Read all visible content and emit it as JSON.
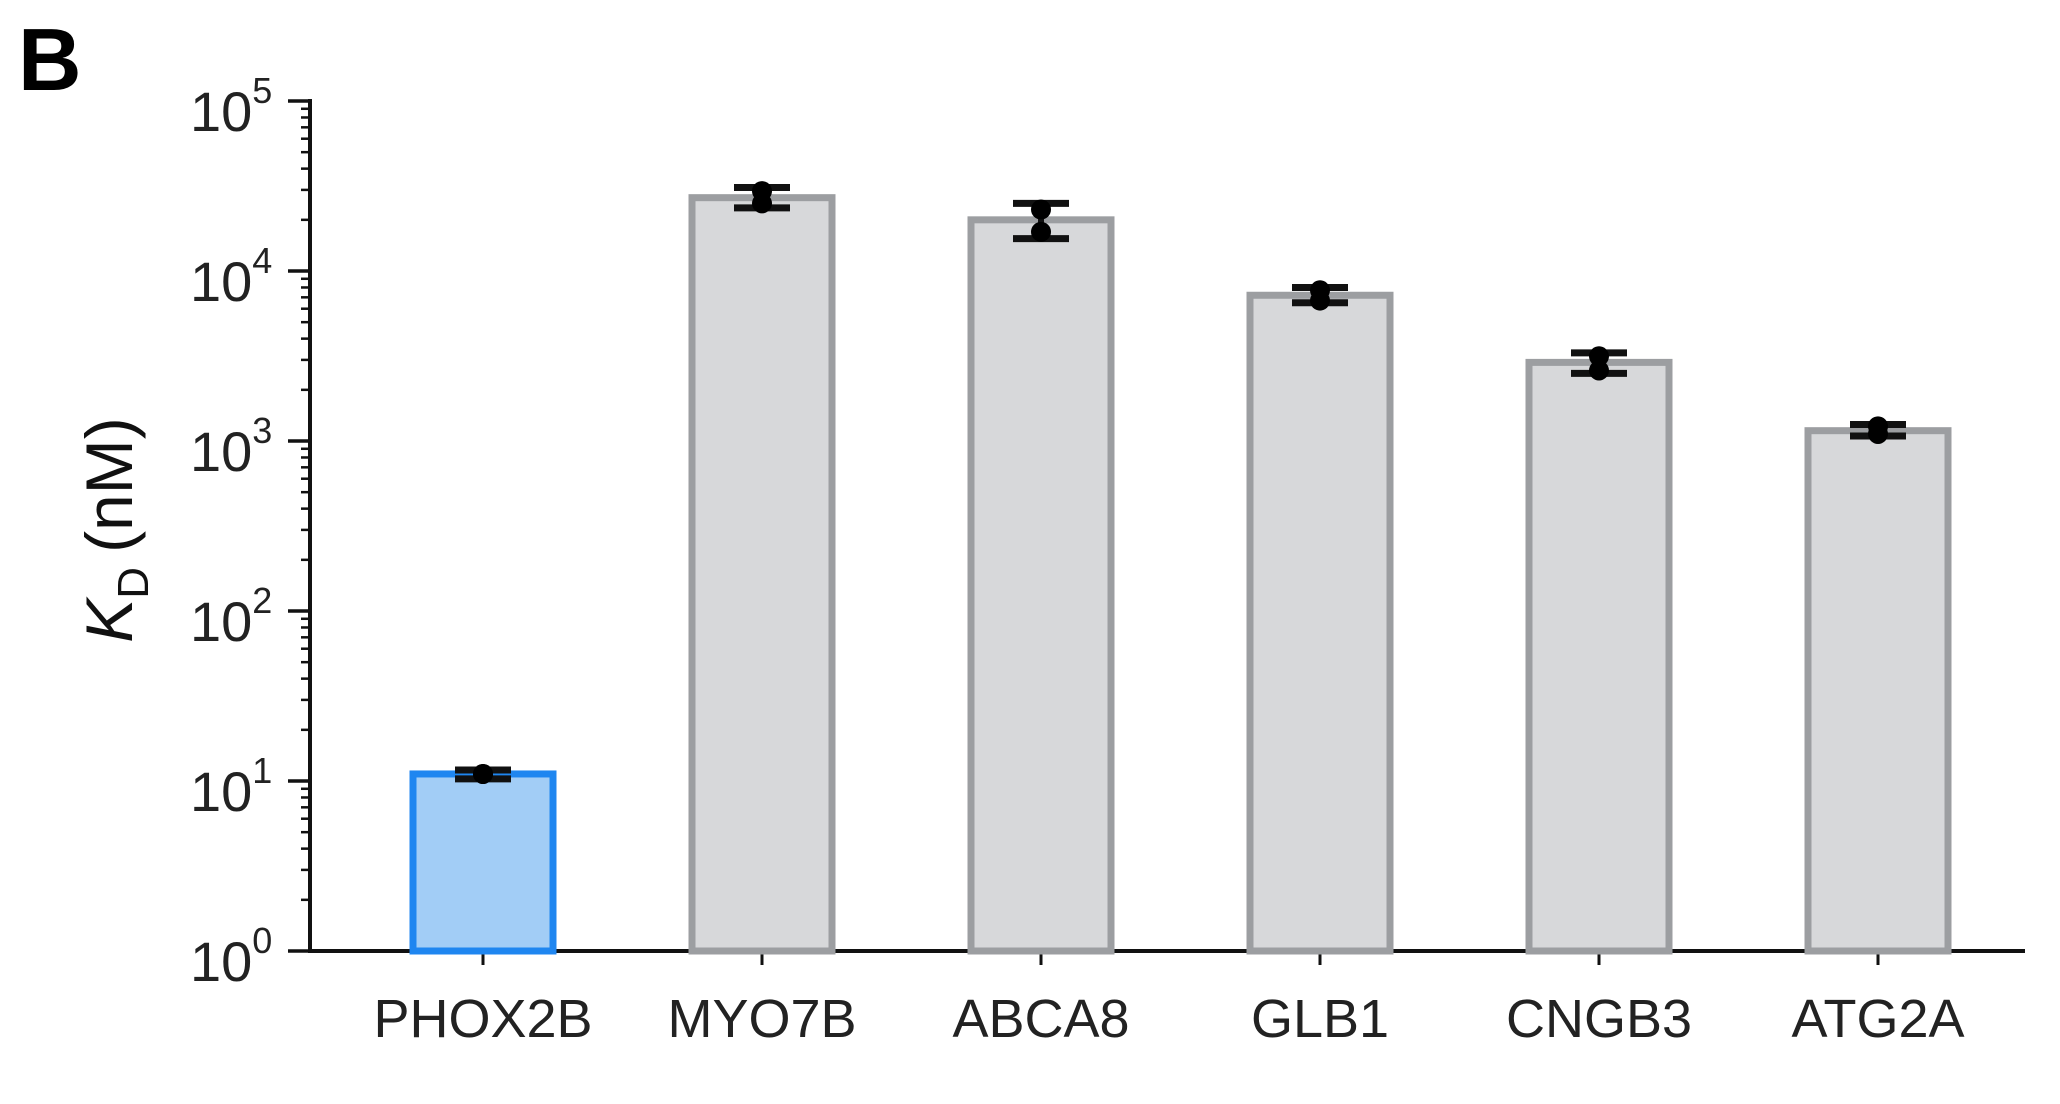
{
  "panel_label": "B",
  "chart_data": {
    "type": "bar",
    "scale": "log",
    "ylabel": {
      "symbol": "K",
      "subscript": "D",
      "unit": "(nM)"
    },
    "ylim": [
      1,
      100000
    ],
    "yticks": [
      {
        "base": "10",
        "exp": "0",
        "value": 1
      },
      {
        "base": "10",
        "exp": "1",
        "value": 10
      },
      {
        "base": "10",
        "exp": "2",
        "value": 100
      },
      {
        "base": "10",
        "exp": "3",
        "value": 1000
      },
      {
        "base": "10",
        "exp": "4",
        "value": 10000
      },
      {
        "base": "10",
        "exp": "5",
        "value": 100000
      }
    ],
    "categories": [
      "PHOX2B",
      "MYO7B",
      "ABCA8",
      "GLB1",
      "CNGB3",
      "ATG2A"
    ],
    "values": [
      11,
      27000,
      20000,
      7200,
      2900,
      1150
    ],
    "error_low": [
      10.3,
      23500,
      15500,
      6500,
      2500,
      1070
    ],
    "error_high": [
      11.6,
      31000,
      25000,
      8000,
      3300,
      1250
    ],
    "points": [
      [
        11,
        11
      ],
      [
        25000,
        29500
      ],
      [
        17000,
        23000
      ],
      [
        6700,
        7700
      ],
      [
        2600,
        3150
      ],
      [
        1100,
        1220
      ]
    ],
    "highlight": "PHOX2B",
    "colors": {
      "highlight_fill": "#a2cdf6",
      "highlight_edge": "#1f86f0",
      "bar_fill": "#d7d8da",
      "bar_edge": "#9c9ea1",
      "axis": "#111111",
      "errorbar": "#111111"
    },
    "grid": false,
    "legend": "none"
  }
}
